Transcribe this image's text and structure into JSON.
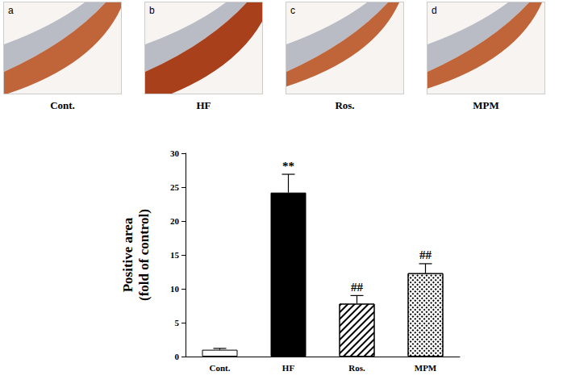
{
  "chart_data": {
    "type": "bar",
    "panels": [
      {
        "letter": "a",
        "label": "Cont."
      },
      {
        "letter": "b",
        "label": "HF"
      },
      {
        "letter": "c",
        "label": "Ros."
      },
      {
        "letter": "d",
        "label": "MPM"
      }
    ],
    "y_label": "Positive area\n(fold of control)",
    "categories": [
      "Cont.",
      "HF",
      "Ros.",
      "MPM"
    ],
    "values": [
      1.0,
      24.2,
      7.8,
      12.3
    ],
    "errors": [
      0.2,
      2.7,
      1.2,
      1.4
    ],
    "colors": [
      "#ffffff",
      "#000000",
      "#ffffff",
      "#ffffff"
    ],
    "annotations": [
      {
        "category": "HF",
        "text": "**"
      },
      {
        "category": "Ros.",
        "text": "##"
      },
      {
        "category": "MPM",
        "text": "##"
      }
    ],
    "ylim": [
      0,
      30
    ],
    "yticks": [
      0,
      5,
      10,
      15,
      20,
      25,
      30
    ],
    "grid": false
  }
}
